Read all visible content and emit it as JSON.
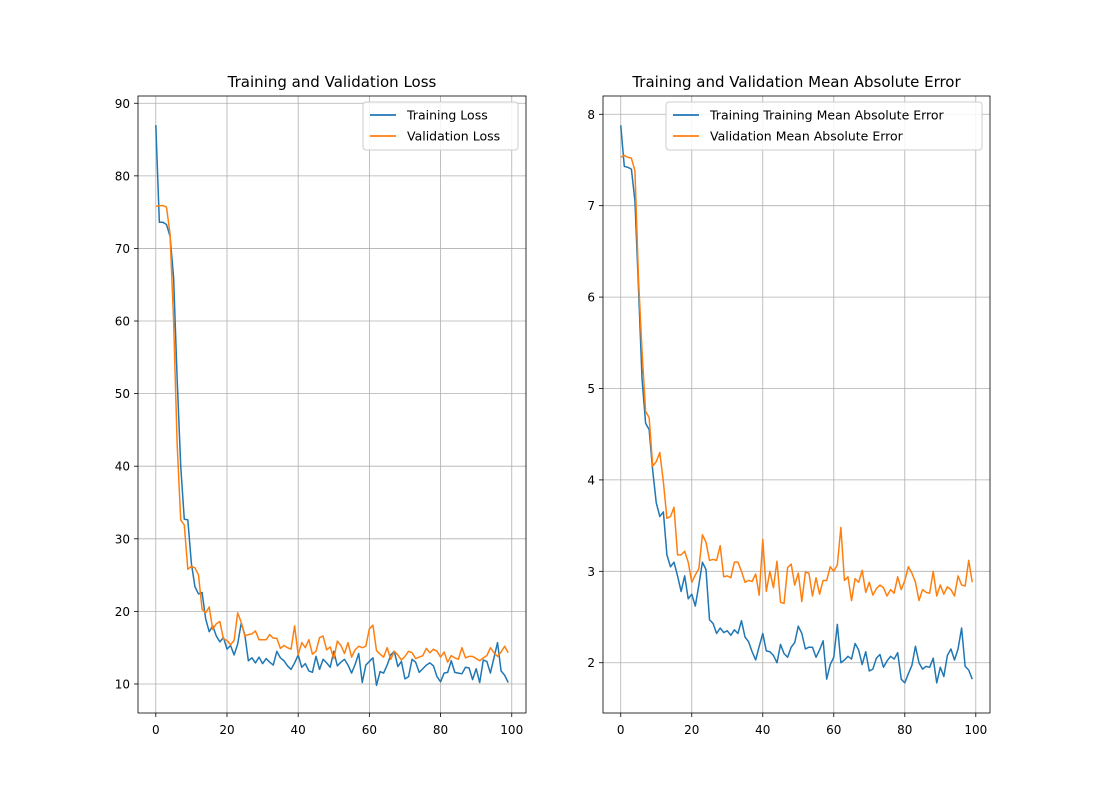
{
  "chart_data": [
    {
      "type": "line",
      "title": "Training and Validation Loss",
      "xlabel": "",
      "ylabel": "",
      "xlim": [
        -5,
        104
      ],
      "ylim": [
        6,
        91
      ],
      "xticks": [
        0,
        20,
        40,
        60,
        80,
        100
      ],
      "yticks": [
        10,
        20,
        30,
        40,
        50,
        60,
        70,
        80,
        90
      ],
      "xtick_labels": [
        "0",
        "20",
        "40",
        "60",
        "80",
        "100"
      ],
      "ytick_labels": [
        "10",
        "20",
        "30",
        "40",
        "50",
        "60",
        "70",
        "80",
        "90"
      ],
      "grid": true,
      "legend_position": "top-right",
      "x": [
        0,
        1,
        2,
        3,
        4,
        5,
        6,
        7,
        8,
        9,
        10,
        11,
        12,
        13,
        14,
        15,
        16,
        17,
        18,
        19,
        20,
        21,
        22,
        23,
        24,
        25,
        26,
        27,
        28,
        29,
        30,
        31,
        32,
        33,
        34,
        35,
        36,
        37,
        38,
        39,
        40,
        41,
        42,
        43,
        44,
        45,
        46,
        47,
        48,
        49,
        50,
        51,
        52,
        53,
        54,
        55,
        56,
        57,
        58,
        59,
        60,
        61,
        62,
        63,
        64,
        65,
        66,
        67,
        68,
        69,
        70,
        71,
        72,
        73,
        74,
        75,
        76,
        77,
        78,
        79,
        80,
        81,
        82,
        83,
        84,
        85,
        86,
        87,
        88,
        89,
        90,
        91,
        92,
        93,
        94,
        95,
        96,
        97,
        98,
        99
      ],
      "series": [
        {
          "name": "Training Loss",
          "color": "#1f77b4",
          "values": [
            87.0,
            73.6,
            73.6,
            73.3,
            71.7,
            66.0,
            52.0,
            40.0,
            32.7,
            32.6,
            26.6,
            23.4,
            22.4,
            22.6,
            19.0,
            17.2,
            18.0,
            16.6,
            15.8,
            16.4,
            14.8,
            15.3,
            14.0,
            15.5,
            18.4,
            16.8,
            13.2,
            13.6,
            12.9,
            13.7,
            12.8,
            13.5,
            13.0,
            12.6,
            14.5,
            13.6,
            13.2,
            12.5,
            12.0,
            12.9,
            14.0,
            12.3,
            12.8,
            11.8,
            11.6,
            13.8,
            12.0,
            13.4,
            12.9,
            12.3,
            14.5,
            12.5,
            13.0,
            13.4,
            12.6,
            11.5,
            12.7,
            14.2,
            10.2,
            12.6,
            13.1,
            13.6,
            9.8,
            11.7,
            11.5,
            12.6,
            14.0,
            14.5,
            12.4,
            13.1,
            10.7,
            11.0,
            13.4,
            13.0,
            11.6,
            12.1,
            12.6,
            12.9,
            12.5,
            11.0,
            10.3,
            11.5,
            11.6,
            13.2,
            11.6,
            11.5,
            11.4,
            12.3,
            12.2,
            10.6,
            12.1,
            10.2,
            13.3,
            13.1,
            11.5,
            13.6,
            15.7,
            11.8,
            11.2,
            10.2
          ]
        },
        {
          "name": "Validation Loss",
          "color": "#ff7f0e",
          "values": [
            75.8,
            75.9,
            75.9,
            75.7,
            72.0,
            60.0,
            43.0,
            32.6,
            31.9,
            25.8,
            26.2,
            26.0,
            25.0,
            20.3,
            19.8,
            20.6,
            17.5,
            18.3,
            18.6,
            16.2,
            16.0,
            15.4,
            16.0,
            19.8,
            18.5,
            16.6,
            16.8,
            16.9,
            17.3,
            16.1,
            16.1,
            16.1,
            16.8,
            16.3,
            16.3,
            14.9,
            15.3,
            15.0,
            14.8,
            18.0,
            14.0,
            15.7,
            15.0,
            16.1,
            14.1,
            14.5,
            16.4,
            16.6,
            14.7,
            15.1,
            13.5,
            15.9,
            15.3,
            14.2,
            15.7,
            13.7,
            14.7,
            15.2,
            15.0,
            15.2,
            17.6,
            18.1,
            14.6,
            14.1,
            13.7,
            15.0,
            13.4,
            14.5,
            14.0,
            13.3,
            13.8,
            14.5,
            14.3,
            13.5,
            13.7,
            13.9,
            14.9,
            14.3,
            14.8,
            14.5,
            13.7,
            14.4,
            13.0,
            13.9,
            13.6,
            13.4,
            15.0,
            13.6,
            13.8,
            13.8,
            13.5,
            13.2,
            13.6,
            13.9,
            15.0,
            14.3,
            13.8,
            14.4,
            15.2,
            14.3
          ]
        }
      ]
    },
    {
      "type": "line",
      "title": "Training and Validation Mean Absolute Error",
      "xlabel": "",
      "ylabel": "",
      "xlim": [
        -5,
        104
      ],
      "ylim": [
        1.45,
        8.2
      ],
      "xticks": [
        0,
        20,
        40,
        60,
        80,
        100
      ],
      "yticks": [
        2,
        3,
        4,
        5,
        6,
        7,
        8
      ],
      "xtick_labels": [
        "0",
        "20",
        "40",
        "60",
        "80",
        "100"
      ],
      "ytick_labels": [
        "2",
        "3",
        "4",
        "5",
        "6",
        "7",
        "8"
      ],
      "grid": true,
      "legend_position": "top-right",
      "x": [
        0,
        1,
        2,
        3,
        4,
        5,
        6,
        7,
        8,
        9,
        10,
        11,
        12,
        13,
        14,
        15,
        16,
        17,
        18,
        19,
        20,
        21,
        22,
        23,
        24,
        25,
        26,
        27,
        28,
        29,
        30,
        31,
        32,
        33,
        34,
        35,
        36,
        37,
        38,
        39,
        40,
        41,
        42,
        43,
        44,
        45,
        46,
        47,
        48,
        49,
        50,
        51,
        52,
        53,
        54,
        55,
        56,
        57,
        58,
        59,
        60,
        61,
        62,
        63,
        64,
        65,
        66,
        67,
        68,
        69,
        70,
        71,
        72,
        73,
        74,
        75,
        76,
        77,
        78,
        79,
        80,
        81,
        82,
        83,
        84,
        85,
        86,
        87,
        88,
        89,
        90,
        91,
        92,
        93,
        94,
        95,
        96,
        97,
        98,
        99
      ],
      "series": [
        {
          "name": "Training Training Mean Absolute Error",
          "color": "#1f77b4",
          "values": [
            7.88,
            7.43,
            7.42,
            7.4,
            7.05,
            6.1,
            5.1,
            4.62,
            4.55,
            4.1,
            3.75,
            3.6,
            3.65,
            3.18,
            3.05,
            3.1,
            2.95,
            2.78,
            2.95,
            2.7,
            2.75,
            2.62,
            2.85,
            3.1,
            3.02,
            2.47,
            2.43,
            2.32,
            2.38,
            2.33,
            2.35,
            2.3,
            2.36,
            2.32,
            2.46,
            2.28,
            2.23,
            2.12,
            2.03,
            2.18,
            2.32,
            2.13,
            2.12,
            2.08,
            2.0,
            2.2,
            2.1,
            2.06,
            2.17,
            2.22,
            2.4,
            2.32,
            2.15,
            2.17,
            2.17,
            2.06,
            2.14,
            2.24,
            1.82,
            1.98,
            2.06,
            2.42,
            2.0,
            2.03,
            2.07,
            2.04,
            2.21,
            2.14,
            1.98,
            2.12,
            1.91,
            1.93,
            2.05,
            2.09,
            1.95,
            2.02,
            2.07,
            2.04,
            2.11,
            1.82,
            1.78,
            1.88,
            1.97,
            2.18,
            2.0,
            1.93,
            1.96,
            1.95,
            2.05,
            1.78,
            1.95,
            1.85,
            2.08,
            2.15,
            2.03,
            2.15,
            2.38,
            1.96,
            1.92,
            1.82
          ]
        },
        {
          "name": "Validation Mean Absolute Error",
          "color": "#ff7f0e",
          "values": [
            7.53,
            7.55,
            7.53,
            7.52,
            7.38,
            6.2,
            5.4,
            4.75,
            4.68,
            4.15,
            4.2,
            4.3,
            3.98,
            3.58,
            3.6,
            3.7,
            3.18,
            3.18,
            3.22,
            3.1,
            2.88,
            2.96,
            3.03,
            3.4,
            3.32,
            3.12,
            3.13,
            3.12,
            3.28,
            2.94,
            2.95,
            2.93,
            3.1,
            3.1,
            3.0,
            2.88,
            2.9,
            2.89,
            2.97,
            2.74,
            3.35,
            2.78,
            3.0,
            2.82,
            3.11,
            2.66,
            2.65,
            3.04,
            3.08,
            2.85,
            2.98,
            2.67,
            2.99,
            2.98,
            2.73,
            2.93,
            2.75,
            2.9,
            2.9,
            3.05,
            3.0,
            3.07,
            3.48,
            2.9,
            2.94,
            2.68,
            2.92,
            2.88,
            3.01,
            2.77,
            2.88,
            2.74,
            2.81,
            2.85,
            2.82,
            2.73,
            2.8,
            2.76,
            2.94,
            2.8,
            2.9,
            3.05,
            2.98,
            2.88,
            2.68,
            2.8,
            2.77,
            2.76,
            3.0,
            2.73,
            2.85,
            2.75,
            2.83,
            2.8,
            2.73,
            2.95,
            2.85,
            2.84,
            3.12,
            2.88
          ]
        }
      ]
    }
  ]
}
